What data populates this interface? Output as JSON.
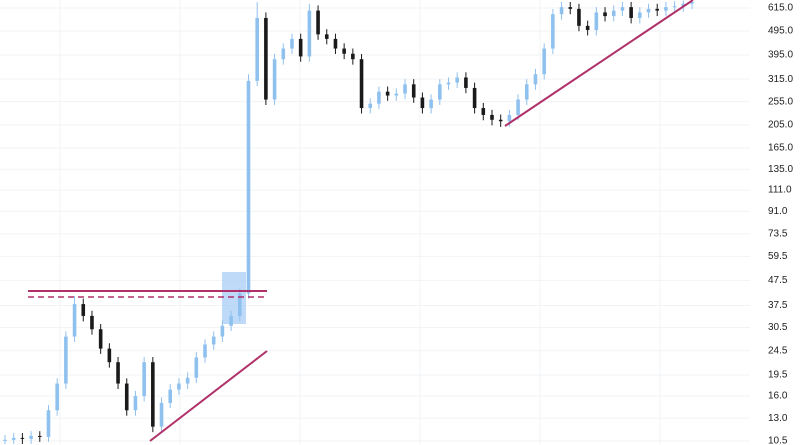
{
  "chart_data": {
    "type": "candlestick",
    "log_scale": true,
    "grid": true,
    "up_color": "#8fc1ef",
    "down_color": "#1a1a1a",
    "ylim": [
      10.1,
      663
    ],
    "yticks": [
      {
        "value": 615,
        "label": "615.0"
      },
      {
        "value": 495,
        "label": "495.0"
      },
      {
        "value": 395,
        "label": "395.0"
      },
      {
        "value": 315,
        "label": "315.0"
      },
      {
        "value": 255,
        "label": "255.0"
      },
      {
        "value": 205,
        "label": "205.0"
      },
      {
        "value": 165,
        "label": "165.0"
      },
      {
        "value": 135,
        "label": "135.0"
      },
      {
        "value": 111,
        "label": "111.0"
      },
      {
        "value": 91,
        "label": "91.0"
      },
      {
        "value": 73.5,
        "label": "73.5"
      },
      {
        "value": 59.5,
        "label": "59.5"
      },
      {
        "value": 47.5,
        "label": "47.5"
      },
      {
        "value": 37.5,
        "label": "37.5"
      },
      {
        "value": 30.5,
        "label": "30.5"
      },
      {
        "value": 24.5,
        "label": "24.5"
      },
      {
        "value": 19.5,
        "label": "19.5"
      },
      {
        "value": 16,
        "label": "16.0"
      },
      {
        "value": 13,
        "label": "13.0"
      },
      {
        "value": 10.5,
        "label": "10.5"
      }
    ],
    "open": [
      10.5,
      10.6,
      10.8,
      10.7,
      11,
      10.9,
      14,
      18,
      28,
      38,
      34,
      30,
      25,
      22,
      18,
      14,
      16,
      22,
      12,
      15,
      17,
      18,
      19,
      23,
      26,
      28,
      31,
      34,
      42,
      310,
      560,
      260,
      380,
      420,
      460,
      390,
      600,
      480,
      460,
      420,
      400,
      380,
      240,
      250,
      280,
      270,
      275,
      300,
      265,
      240,
      260,
      300,
      305,
      320,
      290,
      240,
      225,
      215,
      212,
      225,
      260,
      300,
      330,
      420,
      580,
      620,
      610,
      520,
      500,
      590,
      570,
      600,
      620,
      560,
      590,
      610,
      600,
      620,
      625,
      640
    ],
    "high": [
      11.1,
      11.3,
      11.3,
      11.5,
      11.5,
      14.7,
      18.9,
      29.4,
      41,
      40,
      35.7,
      31.5,
      26.3,
      23.1,
      18.9,
      16.8,
      23.1,
      23.1,
      15.8,
      17.9,
      18.9,
      20,
      24.2,
      27.3,
      29.4,
      32.6,
      35.7,
      44,
      330,
      650,
      590,
      400,
      441,
      483,
      483,
      640,
      630,
      504,
      483,
      441,
      420,
      399,
      263,
      294,
      294,
      289,
      315,
      315,
      278,
      273,
      315,
      320,
      336,
      336,
      305,
      252,
      236,
      226,
      236,
      273,
      315,
      347,
      441,
      609,
      651,
      651,
      640,
      546,
      620,
      620,
      630,
      651,
      651,
      620,
      640,
      640,
      651,
      656,
      660,
      662
    ],
    "low": [
      10.2,
      10.2,
      10.2,
      10.2,
      10.4,
      10.4,
      13.3,
      17.1,
      26.6,
      32.3,
      28.5,
      23.8,
      20.9,
      17.1,
      13.3,
      13.3,
      15.2,
      11.4,
      11.4,
      14.3,
      16.2,
      17.1,
      18.1,
      21.9,
      24.7,
      26.6,
      29.5,
      32.3,
      40,
      295,
      247,
      247,
      361,
      399,
      371,
      371,
      456,
      437,
      399,
      380,
      361,
      228,
      228,
      238,
      257,
      257,
      261,
      252,
      228,
      228,
      247,
      285,
      290,
      276,
      228,
      214,
      204,
      201,
      201,
      214,
      247,
      285,
      314,
      399,
      551,
      580,
      494,
      475,
      475,
      542,
      542,
      570,
      532,
      532,
      561,
      570,
      570,
      589,
      594,
      608
    ],
    "close": [
      10.6,
      10.8,
      10.7,
      11,
      10.9,
      14,
      18,
      28,
      38,
      34,
      30,
      25,
      22,
      18,
      14,
      16,
      22,
      12,
      15,
      17,
      18,
      19,
      23,
      26,
      28,
      31,
      34,
      42,
      310,
      560,
      260,
      380,
      420,
      460,
      390,
      600,
      480,
      460,
      420,
      400,
      380,
      240,
      250,
      280,
      270,
      275,
      300,
      265,
      240,
      260,
      300,
      305,
      320,
      290,
      240,
      225,
      215,
      212,
      225,
      260,
      300,
      330,
      420,
      580,
      620,
      610,
      520,
      500,
      590,
      570,
      600,
      620,
      560,
      590,
      610,
      600,
      620,
      625,
      640,
      650
    ]
  }
}
